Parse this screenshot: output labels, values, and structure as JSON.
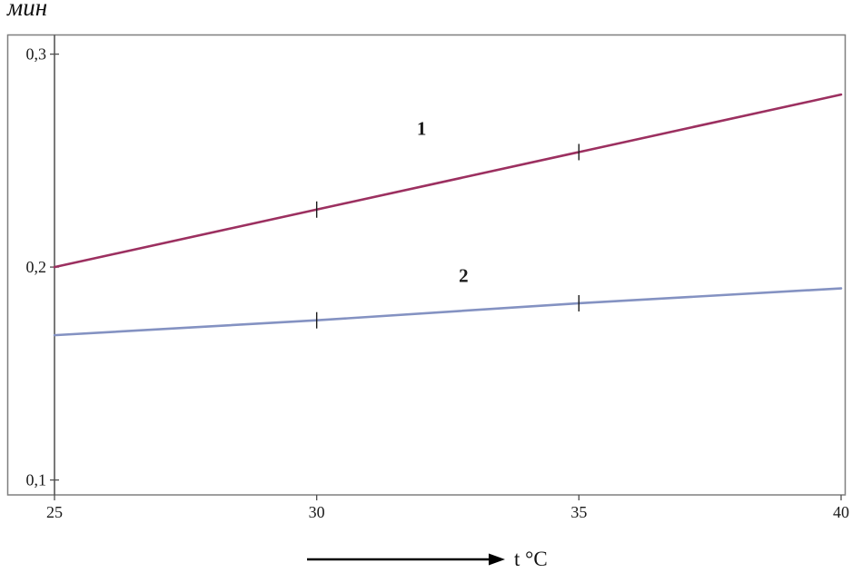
{
  "chart_data": {
    "type": "line",
    "title": "",
    "ylabel": "мин",
    "xlabel": "t °C",
    "x": [
      25,
      30,
      35,
      40
    ],
    "xlim": [
      25,
      40
    ],
    "ylim": [
      0.093,
      0.309
    ],
    "grid": false,
    "legend": "inline-numeric-labels",
    "xticks": [
      {
        "value": 25,
        "label": "25"
      },
      {
        "value": 30,
        "label": "30"
      },
      {
        "value": 35,
        "label": "35"
      },
      {
        "value": 40,
        "label": "40"
      }
    ],
    "yticks": [
      {
        "value": 0.1,
        "label": "0,1"
      },
      {
        "value": 0.2,
        "label": "0,2"
      },
      {
        "value": 0.3,
        "label": "0,3"
      }
    ],
    "marker_x": [
      30,
      35
    ],
    "series": [
      {
        "name": "1",
        "color": "#9c3060",
        "values": [
          0.2,
          0.227,
          0.254,
          0.281
        ],
        "label_anchor": {
          "x": 32.0,
          "y": 0.262
        }
      },
      {
        "name": "2",
        "color": "#8492c2",
        "values": [
          0.168,
          0.175,
          0.183,
          0.19
        ],
        "label_anchor": {
          "x": 32.8,
          "y": 0.193
        }
      }
    ],
    "axis_color": "#4d4d4d",
    "frame_color": "#7f7f7f",
    "marker_color": "#1a1a1a"
  }
}
